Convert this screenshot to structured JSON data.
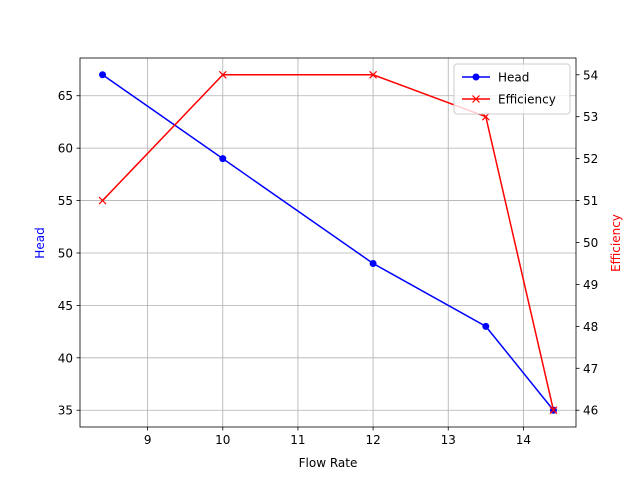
{
  "chart_data": {
    "type": "line",
    "xlabel": "Flow Rate",
    "ylabel": "Head",
    "y2label": "Efficiency",
    "x": [
      8.4,
      10,
      12,
      13.5,
      14.4
    ],
    "series": [
      {
        "name": "Head",
        "color": "#0000ff",
        "marker": "o",
        "values": [
          67,
          59,
          49,
          43,
          35
        ]
      },
      {
        "name": "Efficiency",
        "color": "#ff0000",
        "marker": "x",
        "axis": "y2",
        "values": [
          51,
          54,
          54,
          53,
          46
        ]
      }
    ],
    "xlim": [
      8.1,
      14.7
    ],
    "xticks": [
      9,
      10,
      11,
      12,
      13,
      14
    ],
    "ylim": [
      33.4,
      68.6
    ],
    "yticks": [
      35,
      40,
      45,
      50,
      55,
      60,
      65
    ],
    "y2lim": [
      45.6,
      54.4
    ],
    "y2ticks": [
      46,
      47,
      48,
      49,
      50,
      51,
      52,
      53,
      54
    ],
    "grid": true,
    "legend": "upper right"
  }
}
